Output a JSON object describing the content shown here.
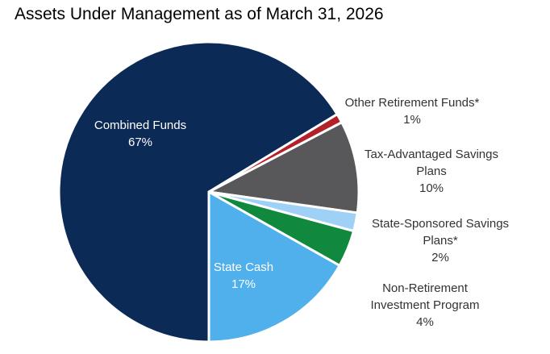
{
  "chart_data": {
    "type": "pie",
    "title": "Assets Under Management as of March 31, 2026",
    "slices": [
      {
        "name": "Combined Funds",
        "label_lines": [
          "Combined Funds"
        ],
        "value": 67,
        "display": "67%",
        "color": "#0c2a56",
        "label_position": "inside"
      },
      {
        "name": "Other Retirement Funds*",
        "label_lines": [
          "Other Retirement Funds*"
        ],
        "value": 1,
        "display": "1%",
        "color": "#b4202a",
        "label_position": "outside"
      },
      {
        "name": "Tax-Advantaged Savings Plans",
        "label_lines": [
          "Tax-Advantaged Savings",
          "Plans"
        ],
        "value": 10,
        "display": "10%",
        "color": "#58585a",
        "label_position": "outside"
      },
      {
        "name": "State-Sponsored Savings Plans*",
        "label_lines": [
          "State-Sponsored Savings",
          "Plans*"
        ],
        "value": 2,
        "display": "2%",
        "color": "#9fd0f5",
        "label_position": "outside"
      },
      {
        "name": "Non-Retirement Investment Program",
        "label_lines": [
          "Non-Retirement",
          "Investment Program"
        ],
        "value": 4,
        "display": "4%",
        "color": "#10893e",
        "label_position": "outside"
      },
      {
        "name": "State Cash",
        "label_lines": [
          "State Cash"
        ],
        "value": 17,
        "display": "17%",
        "color": "#4fb0ec",
        "label_position": "inside"
      }
    ],
    "start_direction": "bottom",
    "rotation": "counterclockwise",
    "legend": "none"
  }
}
